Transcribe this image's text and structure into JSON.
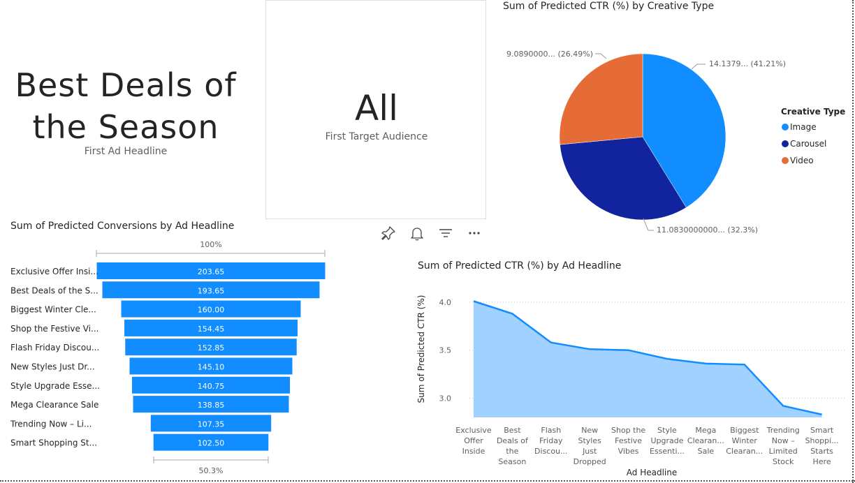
{
  "card1": {
    "value_line1": "Best Deals of",
    "value_line2": "the Season",
    "label": "First Ad Headline"
  },
  "card2": {
    "value": "All",
    "label": "First Target Audience"
  },
  "toolbar": {
    "pin_icon": "pin-icon",
    "bell_icon": "bell-icon",
    "filter_icon": "filter-icon",
    "more_icon": "more-icon"
  },
  "pie": {
    "title": "Sum of Predicted CTR (%) by Creative Type",
    "legend_title": "Creative Type",
    "labels": [
      "14.1379... (41.21%)",
      "11.0830000000... (32.3%)",
      "9.0890000... (26.49%)"
    ]
  },
  "funnel": {
    "title": "Sum of Predicted Conversions by Ad Headline",
    "top_pct": "100%",
    "bottom_pct": "50.3%"
  },
  "line": {
    "title": "Sum of Predicted CTR (%) by Ad Headline",
    "xlabel": "Ad Headline",
    "ylabel": "Sum of Predicted CTR (%)"
  },
  "chart_data": [
    {
      "type": "pie",
      "title": "Sum of Predicted CTR (%) by Creative Type",
      "legend_title": "Creative Type",
      "legend_position": "right",
      "categories": [
        "Image",
        "Carousel",
        "Video"
      ],
      "values": [
        14.1379,
        11.083,
        9.089
      ],
      "percents": [
        41.21,
        32.3,
        26.49
      ],
      "colors": [
        "#118DFF",
        "#12239E",
        "#E66C37"
      ]
    },
    {
      "type": "bar",
      "subtype": "funnel",
      "title": "Sum of Predicted Conversions by Ad Headline",
      "categories": [
        "Exclusive Offer Insi...",
        "Best Deals of the S...",
        "Biggest Winter Cle...",
        "Shop the Festive Vi...",
        "Flash Friday Discou...",
        "New Styles Just Dr...",
        "Style Upgrade Esse...",
        "Mega Clearance Sale",
        "Trending Now – Li...",
        "Smart Shopping St..."
      ],
      "values": [
        203.65,
        193.65,
        160.0,
        154.45,
        152.85,
        145.1,
        140.75,
        138.85,
        107.35,
        102.5
      ],
      "value_labels": [
        "203.65",
        "193.65",
        "160.00",
        "154.45",
        "152.85",
        "145.10",
        "140.75",
        "138.85",
        "107.35",
        "102.50"
      ],
      "color": "#118DFF"
    },
    {
      "type": "area",
      "title": "Sum of Predicted CTR (%) by Ad Headline",
      "xlabel": "Ad Headline",
      "ylabel": "Sum of Predicted CTR (%)",
      "categories": [
        [
          "Exclusive",
          "Offer",
          "Inside"
        ],
        [
          "Best",
          "Deals of",
          "the",
          "Season"
        ],
        [
          "Flash",
          "Friday",
          "Discou..."
        ],
        [
          "New",
          "Styles",
          "Just",
          "Dropped"
        ],
        [
          "Shop the",
          "Festive",
          "Vibes"
        ],
        [
          "Style",
          "Upgrade",
          "Essenti..."
        ],
        [
          "Mega",
          "Clearan...",
          "Sale"
        ],
        [
          "Biggest",
          "Winter",
          "Clearan..."
        ],
        [
          "Trending",
          "Now –",
          "Limited",
          "Stock"
        ],
        [
          "Smart",
          "Shoppi...",
          "Starts",
          "Here"
        ]
      ],
      "values": [
        4.01,
        3.88,
        3.58,
        3.51,
        3.5,
        3.41,
        3.36,
        3.35,
        2.92,
        2.83
      ],
      "yticks": [
        "3.0",
        "3.5",
        "4.0"
      ],
      "yticks_values": [
        3.0,
        3.5,
        4.0
      ],
      "ylim": [
        2.8,
        4.05
      ],
      "grid": true,
      "line_color": "#118DFF",
      "fill_color": "#A0D1FF"
    }
  ]
}
